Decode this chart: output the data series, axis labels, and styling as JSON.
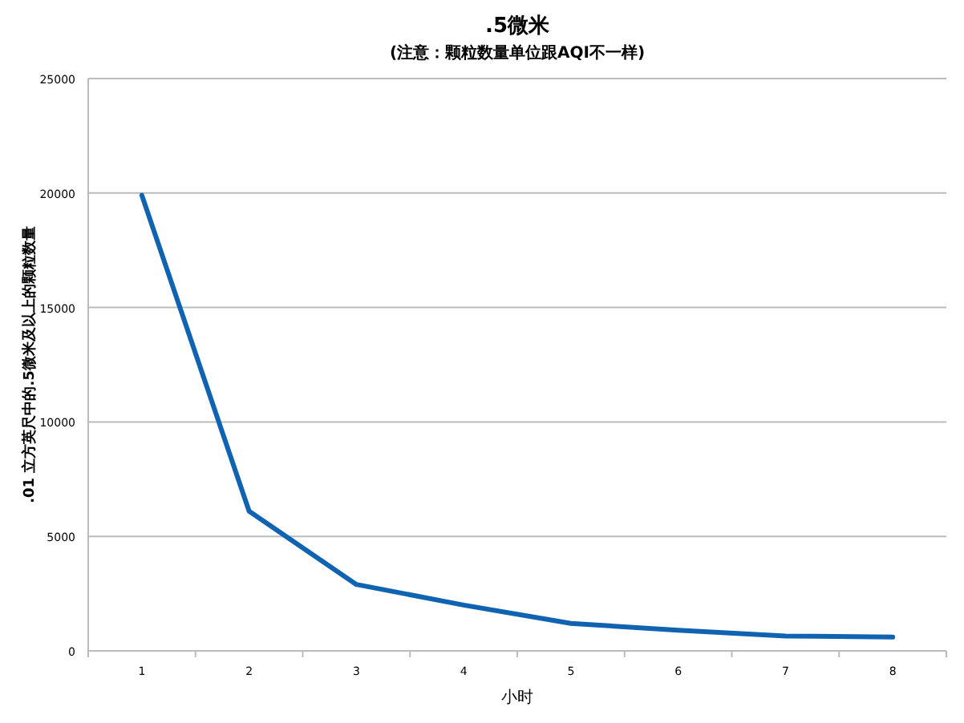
{
  "chart_data": {
    "type": "line",
    "title": ".5微米",
    "subtitle": "(注意：颗粒数量单位跟AQI不一样)",
    "xlabel": "小时",
    "ylabel": ".01 立方英尺中的.5微米及以上的颗粒数量",
    "categories": [
      "1",
      "2",
      "3",
      "4",
      "5",
      "6",
      "7",
      "8"
    ],
    "series": [
      {
        "color": "#0f63b0",
        "values": [
          19900,
          6100,
          2900,
          2000,
          1200,
          900,
          650,
          600
        ]
      }
    ],
    "ylim": [
      0,
      25000
    ],
    "yticks": [
      0,
      5000,
      10000,
      15000,
      20000,
      25000
    ],
    "grid": "y",
    "marker": "none",
    "line_style": "solid"
  }
}
